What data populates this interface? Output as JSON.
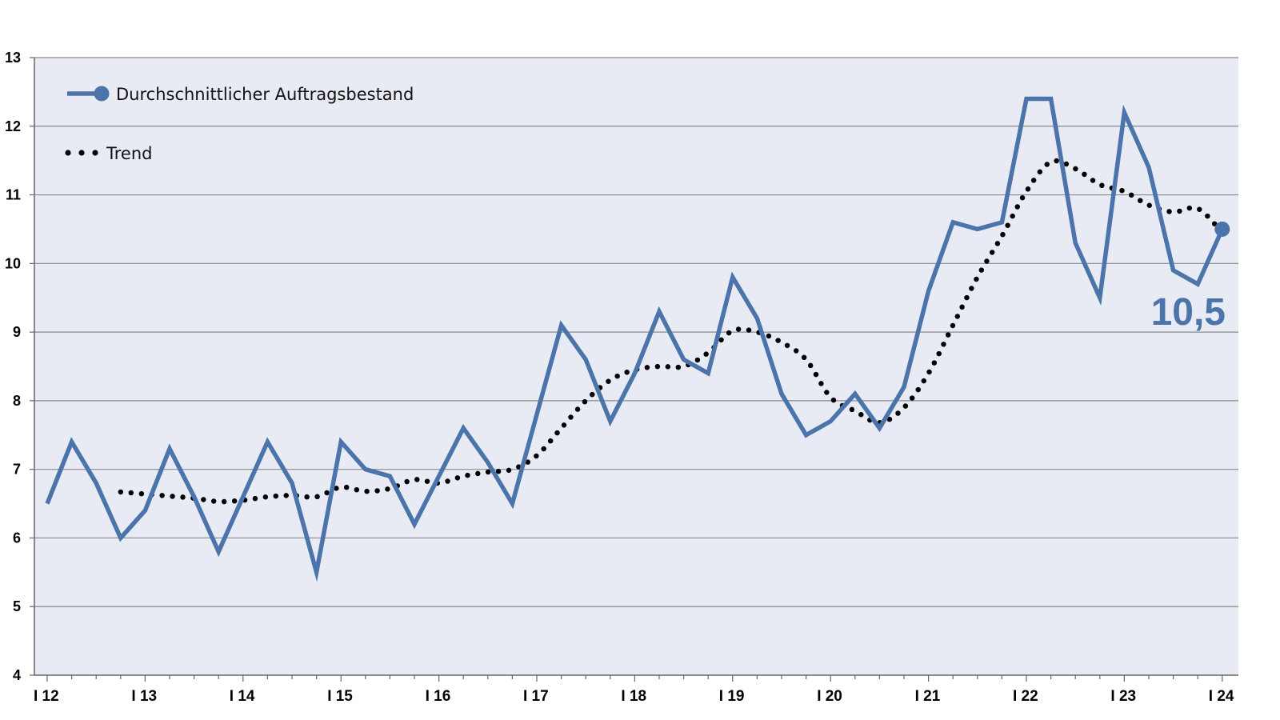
{
  "chart_data": {
    "type": "line",
    "ylim": [
      4,
      13
    ],
    "yticks": [
      "4",
      "5",
      "6",
      "7",
      "8",
      "9",
      "10",
      "11",
      "12",
      "13"
    ],
    "xticks": [
      "I 12",
      "I 13",
      "I 14",
      "I 15",
      "I 16",
      "I 17",
      "I 18",
      "I 19",
      "I 20",
      "I 21",
      "I 22",
      "I 23",
      "I 24"
    ],
    "grid": "horizontal",
    "legend_position": "top-left",
    "colors": {
      "series": "#4a74aa",
      "trend": "#000000",
      "plot_background": "#e8ebf4",
      "gridline": "#8a8a8a"
    },
    "series": [
      {
        "name": "Durchschnittlicher Auftragsbestand",
        "style": "solid-line-with-end-marker",
        "values": [
          6.5,
          7.4,
          6.8,
          6.0,
          6.4,
          7.3,
          6.6,
          5.8,
          6.6,
          7.4,
          6.8,
          5.5,
          7.4,
          7.0,
          6.9,
          6.2,
          6.9,
          7.6,
          7.1,
          6.5,
          7.8,
          9.1,
          8.6,
          7.7,
          8.4,
          9.3,
          8.6,
          8.4,
          9.8,
          9.2,
          8.1,
          7.5,
          7.7,
          8.1,
          7.6,
          8.2,
          9.6,
          10.6,
          10.5,
          10.6,
          12.4,
          12.4,
          10.3,
          9.5,
          12.2,
          11.4,
          9.9,
          9.7,
          10.5
        ]
      },
      {
        "name": "Trend",
        "style": "dotted",
        "values": [
          null,
          null,
          null,
          6.67,
          6.64,
          6.61,
          6.58,
          6.53,
          6.55,
          6.6,
          6.62,
          6.6,
          6.74,
          6.68,
          6.72,
          6.85,
          6.8,
          6.9,
          6.96,
          7.0,
          7.2,
          7.6,
          8.0,
          8.3,
          8.45,
          8.5,
          8.5,
          8.7,
          9.02,
          9.0,
          8.85,
          8.6,
          8.05,
          7.85,
          7.68,
          7.9,
          8.4,
          9.1,
          9.8,
          10.4,
          11.05,
          11.48,
          11.38,
          11.15,
          11.05,
          10.85,
          10.75,
          10.8,
          10.45
        ]
      }
    ],
    "annotations": [
      "10,5"
    ]
  }
}
